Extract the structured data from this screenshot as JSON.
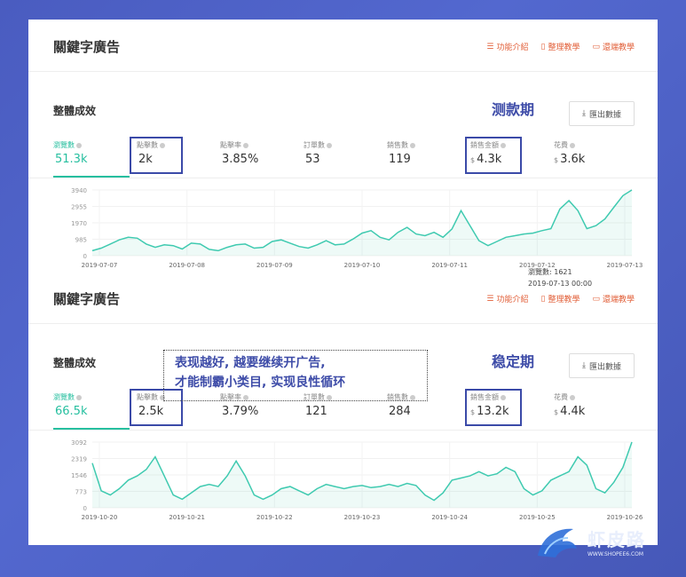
{
  "top_panel": {
    "title": "關鍵字廣告",
    "links": [
      "功能介紹",
      "整理教學",
      "還端教學"
    ],
    "subtitle": "整體成效",
    "phase": "测款期",
    "export_label": "匯出數據",
    "metrics": [
      {
        "label": "瀏覽數",
        "value": "51.3k",
        "currency": ""
      },
      {
        "label": "點擊數",
        "value": "2k",
        "currency": ""
      },
      {
        "label": "點擊率",
        "value": "3.85%",
        "currency": ""
      },
      {
        "label": "訂單數",
        "value": "53",
        "currency": ""
      },
      {
        "label": "銷售數",
        "value": "119",
        "currency": ""
      },
      {
        "label": "銷售金額",
        "value": "4.3k",
        "currency": "$"
      },
      {
        "label": "花費",
        "value": "3.6k",
        "currency": "$"
      }
    ],
    "tooltip": {
      "line1": "瀏覽數: 1621",
      "line2": "2019-07-13 00:00"
    }
  },
  "bottom_panel": {
    "title": "關鍵字廣告",
    "links": [
      "功能介紹",
      "整理教學",
      "還端教學"
    ],
    "subtitle": "整體成效",
    "phase": "稳定期",
    "export_label": "匯出數據",
    "metrics": [
      {
        "label": "瀏覽數",
        "value": "66.5k",
        "currency": ""
      },
      {
        "label": "點擊數",
        "value": "2.5k",
        "currency": ""
      },
      {
        "label": "點擊率",
        "value": "3.79%",
        "currency": ""
      },
      {
        "label": "訂單數",
        "value": "121",
        "currency": ""
      },
      {
        "label": "銷售數",
        "value": "284",
        "currency": ""
      },
      {
        "label": "銷售金額",
        "value": "13.2k",
        "currency": "$"
      },
      {
        "label": "花費",
        "value": "4.4k",
        "currency": "$"
      }
    ]
  },
  "annotation": {
    "line1": "表现越好, 越要继续开广告,",
    "line2": "才能制霸小类目, 实现良性循环"
  },
  "watermark": {
    "name": "虾皮路",
    "url": "WWW.SHOPEE6.COM"
  },
  "colors": {
    "accent": "#26bf9f",
    "highlight": "#3b4aa8",
    "link": "#e2603a"
  },
  "chart_data": [
    {
      "type": "area",
      "ylim": [
        0,
        3940
      ],
      "yticks": [
        "3940",
        "2955",
        "1970",
        "985",
        "0"
      ],
      "xticks": [
        "2019-07-07",
        "2019-07-08",
        "2019-07-09",
        "2019-07-10",
        "2019-07-11",
        "2019-07-12",
        "2019-07-13"
      ],
      "series": [
        {
          "values": [
            300,
            450,
            700,
            950,
            1100,
            1050,
            700,
            500,
            650,
            600,
            400,
            750,
            700,
            380,
            300,
            500,
            650,
            700,
            450,
            500,
            850,
            950,
            750,
            550,
            450,
            650,
            900,
            650,
            700,
            1000,
            1350,
            1500,
            1100,
            950,
            1400,
            1700,
            1300,
            1200,
            1400,
            1100,
            1600,
            2700,
            1800,
            900,
            600,
            850,
            1100,
            1200,
            1300,
            1350,
            1500,
            1621,
            2800,
            3300,
            2700,
            1621,
            1800,
            2200,
            2900,
            3600,
            3940
          ]
        }
      ]
    },
    {
      "type": "area",
      "ylim": [
        0,
        3092
      ],
      "yticks": [
        "3092",
        "2319",
        "1546",
        "773",
        "0"
      ],
      "xticks": [
        "2019-10-20",
        "2019-10-21",
        "2019-10-22",
        "2019-10-23",
        "2019-10-24",
        "2019-10-25",
        "2019-10-26"
      ],
      "series": [
        {
          "values": [
            2100,
            800,
            600,
            900,
            1300,
            1500,
            1800,
            2400,
            1500,
            600,
            400,
            700,
            1000,
            1100,
            1000,
            1500,
            2200,
            1500,
            600,
            400,
            600,
            900,
            1000,
            800,
            600,
            900,
            1100,
            1000,
            900,
            1000,
            1050,
            950,
            1000,
            1100,
            1000,
            1150,
            1050,
            600,
            350,
            700,
            1300,
            1400,
            1500,
            1700,
            1500,
            1600,
            1900,
            1700,
            900,
            600,
            800,
            1300,
            1500,
            1700,
            2400,
            2000,
            900,
            700,
            1200,
            1900,
            3092
          ]
        }
      ]
    }
  ]
}
